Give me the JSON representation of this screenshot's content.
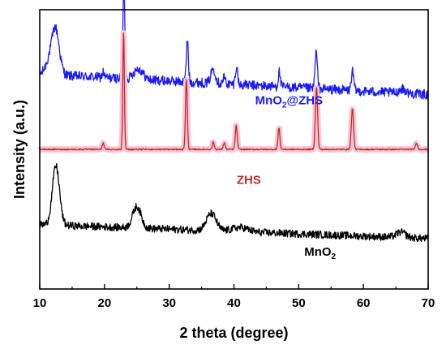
{
  "chart_data": {
    "type": "line",
    "xlabel": "2 theta (degree)",
    "ylabel": "Intensity (a.u.)",
    "xlim": [
      10,
      70
    ],
    "xticks": [
      10,
      20,
      30,
      40,
      50,
      60,
      70
    ],
    "grid": false,
    "y_ticks_shown": false,
    "series": [
      {
        "name": "MnO2@ZHS",
        "label_main": "MnO",
        "label_sub": "2",
        "label_tail": "@ZHS",
        "color": "#1a1aff",
        "baseline": 1.65,
        "baseline_end": 1.46,
        "noise": 0.045,
        "label_x": 48.5,
        "label_y": 1.37,
        "peaks": [
          {
            "x": 12.4,
            "h": 0.44,
            "w": 0.6
          },
          {
            "x": 11.2,
            "h": 0.08,
            "w": 0.5
          },
          {
            "x": 19.8,
            "h": 0.05,
            "w": 0.15
          },
          {
            "x": 23.0,
            "h": 0.9,
            "w": 0.14
          },
          {
            "x": 25.2,
            "h": 0.1,
            "w": 0.7
          },
          {
            "x": 32.8,
            "h": 0.38,
            "w": 0.16
          },
          {
            "x": 36.8,
            "h": 0.14,
            "w": 0.35
          },
          {
            "x": 38.5,
            "h": 0.06,
            "w": 0.2
          },
          {
            "x": 40.4,
            "h": 0.17,
            "w": 0.17
          },
          {
            "x": 47.0,
            "h": 0.14,
            "w": 0.16
          },
          {
            "x": 52.7,
            "h": 0.34,
            "w": 0.18
          },
          {
            "x": 58.3,
            "h": 0.18,
            "w": 0.18
          },
          {
            "x": 66.0,
            "h": 0.04,
            "w": 0.5
          }
        ]
      },
      {
        "name": "ZHS",
        "label_main": "ZHS",
        "label_sub": "",
        "label_tail": "",
        "color": "#c62828",
        "shadow_color": "#f7c7d6",
        "baseline": 0.95,
        "baseline_end": 0.95,
        "noise": 0.006,
        "label_x": 42.3,
        "label_y": 0.63,
        "peaks": [
          {
            "x": 19.8,
            "h": 0.06,
            "w": 0.14
          },
          {
            "x": 22.95,
            "h": 1.1,
            "w": 0.12
          },
          {
            "x": 32.65,
            "h": 0.65,
            "w": 0.14
          },
          {
            "x": 36.8,
            "h": 0.07,
            "w": 0.15
          },
          {
            "x": 38.5,
            "h": 0.06,
            "w": 0.15
          },
          {
            "x": 40.35,
            "h": 0.22,
            "w": 0.15
          },
          {
            "x": 46.95,
            "h": 0.2,
            "w": 0.15
          },
          {
            "x": 52.75,
            "h": 0.58,
            "w": 0.17
          },
          {
            "x": 58.3,
            "h": 0.38,
            "w": 0.17
          },
          {
            "x": 68.2,
            "h": 0.06,
            "w": 0.16
          }
        ]
      },
      {
        "name": "MnO2",
        "label_main": "MnO",
        "label_sub": "2",
        "label_tail": "",
        "color": "#000000",
        "baseline": 0.25,
        "baseline_end": 0.12,
        "noise": 0.035,
        "label_x": 53.3,
        "label_y": -0.04,
        "peaks": [
          {
            "x": 12.5,
            "h": 0.55,
            "w": 0.55
          },
          {
            "x": 25.0,
            "h": 0.2,
            "w": 0.65
          },
          {
            "x": 36.5,
            "h": 0.16,
            "w": 0.75
          },
          {
            "x": 41.0,
            "h": 0.04,
            "w": 1.2
          },
          {
            "x": 65.8,
            "h": 0.05,
            "w": 0.7
          }
        ]
      }
    ]
  }
}
